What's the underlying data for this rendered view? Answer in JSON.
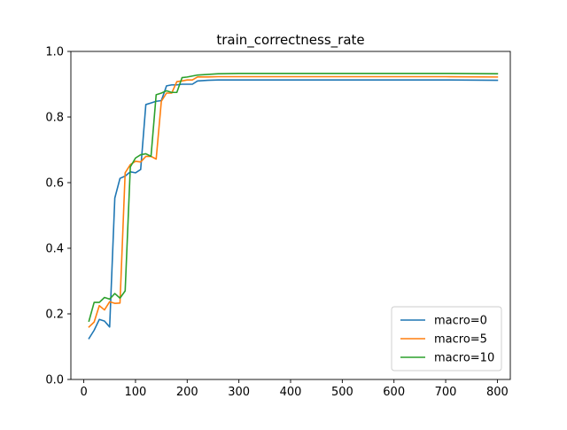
{
  "chart_data": {
    "type": "line",
    "title": "train_correctness_rate",
    "xlabel": "",
    "ylabel": "",
    "xlim": [
      -25,
      825
    ],
    "ylim": [
      0.0,
      1.0
    ],
    "x_ticks": [
      0,
      100,
      200,
      300,
      400,
      500,
      600,
      700,
      800
    ],
    "x_tick_labels": [
      "0",
      "100",
      "200",
      "300",
      "400",
      "500",
      "600",
      "700",
      "800"
    ],
    "y_ticks": [
      0.0,
      0.2,
      0.4,
      0.6,
      0.8,
      1.0
    ],
    "y_tick_labels": [
      "0.0",
      "0.2",
      "0.4",
      "0.6",
      "0.8",
      "1.0"
    ],
    "grid": false,
    "legend_position": "lower-right",
    "series": [
      {
        "name": "macro=0",
        "color": "#1f77b4",
        "x": [
          10,
          20,
          30,
          40,
          50,
          60,
          70,
          80,
          90,
          100,
          110,
          120,
          130,
          140,
          150,
          160,
          170,
          180,
          190,
          200,
          210,
          220,
          240,
          260,
          300,
          400,
          500,
          600,
          700,
          800
        ],
        "y": [
          0.125,
          0.15,
          0.183,
          0.178,
          0.16,
          0.553,
          0.613,
          0.62,
          0.633,
          0.63,
          0.64,
          0.838,
          0.843,
          0.848,
          0.85,
          0.895,
          0.898,
          0.898,
          0.9,
          0.9,
          0.9,
          0.91,
          0.912,
          0.913,
          0.913,
          0.913,
          0.913,
          0.913,
          0.913,
          0.912
        ]
      },
      {
        "name": "macro=5",
        "color": "#ff7f0e",
        "x": [
          10,
          20,
          30,
          40,
          50,
          60,
          70,
          80,
          90,
          100,
          110,
          120,
          130,
          140,
          150,
          160,
          170,
          180,
          190,
          200,
          210,
          220,
          240,
          260,
          300,
          400,
          500,
          600,
          700,
          800
        ],
        "y": [
          0.16,
          0.175,
          0.225,
          0.212,
          0.237,
          0.232,
          0.233,
          0.63,
          0.655,
          0.665,
          0.663,
          0.68,
          0.68,
          0.672,
          0.848,
          0.873,
          0.873,
          0.908,
          0.91,
          0.913,
          0.913,
          0.922,
          0.922,
          0.923,
          0.923,
          0.923,
          0.923,
          0.923,
          0.923,
          0.922
        ]
      },
      {
        "name": "macro=10",
        "color": "#2ca02c",
        "x": [
          10,
          20,
          30,
          40,
          50,
          60,
          70,
          80,
          90,
          100,
          110,
          120,
          130,
          140,
          150,
          160,
          170,
          180,
          190,
          200,
          210,
          220,
          240,
          260,
          300,
          400,
          500,
          600,
          700,
          800
        ],
        "y": [
          0.178,
          0.235,
          0.235,
          0.25,
          0.245,
          0.262,
          0.248,
          0.27,
          0.648,
          0.675,
          0.685,
          0.688,
          0.68,
          0.868,
          0.873,
          0.88,
          0.875,
          0.875,
          0.92,
          0.922,
          0.925,
          0.928,
          0.93,
          0.932,
          0.933,
          0.933,
          0.933,
          0.933,
          0.933,
          0.932
        ]
      }
    ]
  }
}
